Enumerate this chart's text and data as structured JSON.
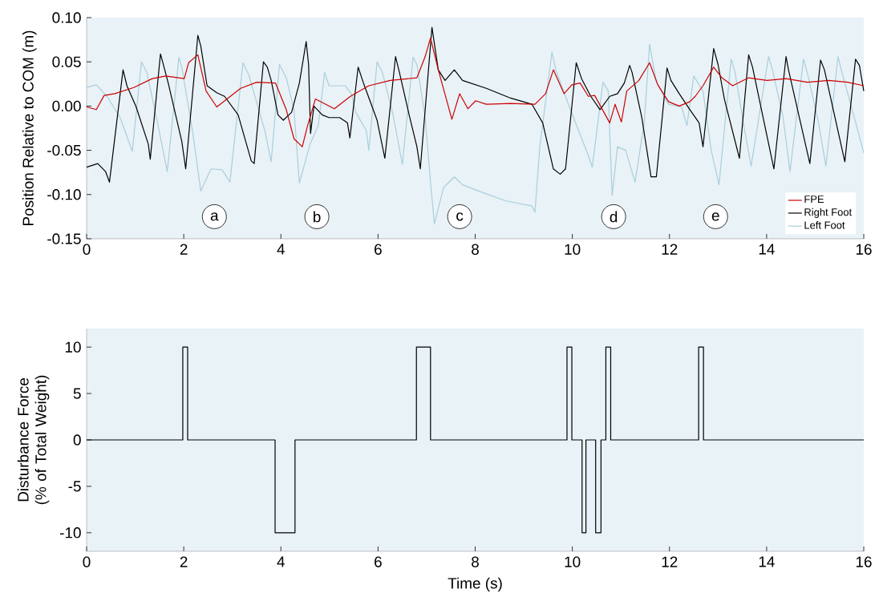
{
  "chart_data": [
    {
      "type": "line",
      "ylabel": "Position Relative to COM (m)",
      "xlim": [
        0,
        16
      ],
      "ylim": [
        -0.15,
        0.1
      ],
      "xticks": [
        0,
        2,
        4,
        6,
        8,
        10,
        12,
        14,
        16
      ],
      "yticks": [
        {
          "value": -0.15,
          "label": "-0.15"
        },
        {
          "value": -0.1,
          "label": "-0.10"
        },
        {
          "value": -0.05,
          "label": "-0.05"
        },
        {
          "value": 0,
          "label": "0.00"
        },
        {
          "value": 0.05,
          "label": "0.05"
        },
        {
          "value": 0.1,
          "label": "0.10"
        }
      ],
      "legend": "bottom right",
      "series": [
        {
          "name": "FPE",
          "color": "#cc0000",
          "x": [
            0,
            0.2,
            0.36,
            0.58,
            0.97,
            1.35,
            1.63,
            2.01,
            2.1,
            2.29,
            2.46,
            2.68,
            2.89,
            3.17,
            3.5,
            3.89,
            4.11,
            4.27,
            4.44,
            4.55,
            4.71,
            5.1,
            5.43,
            5.81,
            6.25,
            6.8,
            6.97,
            7.08,
            7.24,
            7.52,
            7.68,
            7.85,
            8.01,
            8.23,
            8.73,
            9.23,
            9.45,
            9.61,
            9.83,
            9.99,
            10.16,
            10.33,
            10.46,
            10.77,
            10.88,
            11.01,
            11.12,
            11.37,
            11.59,
            11.76,
            11.98,
            12.2,
            12.42,
            12.53,
            12.69,
            12.91,
            13.08,
            13.3,
            13.63,
            14.01,
            14.4,
            14.84,
            15.28,
            15.67,
            16
          ],
          "values": [
            -0.001,
            -0.004,
            0.012,
            0.014,
            0.021,
            0.031,
            0.034,
            0.031,
            0.049,
            0.058,
            0.017,
            -0.001,
            0.008,
            0.02,
            0.027,
            0.026,
            -0.004,
            -0.037,
            -0.046,
            -0.022,
            0.008,
            -0.003,
            0.011,
            0.023,
            0.029,
            0.032,
            0.056,
            0.077,
            0.041,
            -0.015,
            0.014,
            -0.003,
            0.006,
            0.002,
            0.003,
            0.002,
            0.014,
            0.041,
            0.014,
            0.024,
            0.026,
            0.011,
            0.012,
            -0.019,
            0.002,
            -0.018,
            0.017,
            0.029,
            0.049,
            0.024,
            0.005,
            0.0,
            0.005,
            0.011,
            0.023,
            0.044,
            0.032,
            0.023,
            0.032,
            0.029,
            0.031,
            0.027,
            0.029,
            0.027,
            0.023
          ]
        },
        {
          "name": "Right Foot",
          "color": "#000000",
          "x": [
            0,
            0.23,
            0.39,
            0.47,
            0.75,
            0.83,
            1.02,
            1.27,
            1.31,
            1.52,
            1.57,
            1.68,
            1.96,
            2.04,
            2.29,
            2.35,
            2.48,
            2.68,
            2.84,
            3.12,
            3.39,
            3.45,
            3.64,
            3.72,
            3.8,
            3.94,
            4.05,
            4.22,
            4.38,
            4.52,
            4.57,
            4.61,
            4.68,
            4.85,
            4.99,
            5.21,
            5.37,
            5.42,
            5.59,
            5.7,
            5.98,
            6.14,
            6.36,
            6.44,
            6.64,
            6.8,
            6.87,
            7.11,
            7.24,
            7.38,
            7.57,
            7.74,
            8.23,
            8.73,
            9.17,
            9.39,
            9.61,
            9.75,
            9.86,
            10.08,
            10.19,
            10.38,
            10.57,
            10.77,
            10.93,
            11.07,
            11.18,
            11.23,
            11.43,
            11.62,
            11.73,
            11.95,
            12.03,
            12.2,
            12.42,
            12.61,
            12.69,
            12.91,
            13.0,
            13.13,
            13.44,
            13.63,
            13.71,
            14.15,
            14.4,
            14.45,
            14.89,
            15.11,
            15.19,
            15.61,
            15.83,
            15.91,
            16
          ],
          "values": [
            -0.069,
            -0.065,
            -0.074,
            -0.086,
            0.041,
            0.023,
            -0.001,
            -0.043,
            -0.06,
            0.059,
            0.049,
            0.026,
            -0.04,
            -0.071,
            0.08,
            0.068,
            0.023,
            0.015,
            0.011,
            -0.01,
            -0.062,
            -0.065,
            0.05,
            0.044,
            0.029,
            -0.01,
            -0.016,
            -0.007,
            0.026,
            0.073,
            0.047,
            -0.031,
            0.0,
            -0.01,
            -0.013,
            -0.013,
            -0.019,
            -0.036,
            0.044,
            0.026,
            -0.016,
            -0.059,
            0.056,
            0.038,
            -0.01,
            -0.046,
            -0.071,
            0.089,
            0.041,
            0.029,
            0.041,
            0.029,
            0.02,
            0.009,
            0.002,
            -0.019,
            -0.071,
            -0.077,
            -0.071,
            0.049,
            0.031,
            0.011,
            -0.004,
            0.011,
            0.014,
            0.026,
            0.046,
            0.038,
            -0.013,
            -0.08,
            -0.08,
            0.043,
            0.029,
            0.014,
            -0.004,
            -0.019,
            -0.046,
            0.065,
            0.047,
            0.008,
            -0.059,
            0.058,
            0.044,
            -0.071,
            0.056,
            0.041,
            -0.065,
            0.052,
            0.041,
            -0.063,
            0.053,
            0.046,
            0.017
          ]
        },
        {
          "name": "Left Foot",
          "color": "#a8cfdc",
          "x": [
            0,
            0.2,
            0.42,
            0.69,
            0.94,
            1.13,
            1.24,
            1.46,
            1.66,
            1.9,
            1.96,
            2.18,
            2.35,
            2.56,
            2.79,
            2.95,
            3.22,
            3.34,
            3.67,
            3.8,
            3.97,
            4.11,
            4.27,
            4.38,
            4.6,
            4.77,
            4.9,
            4.99,
            5.32,
            5.45,
            5.54,
            5.76,
            5.81,
            5.98,
            6.09,
            6.31,
            6.5,
            6.72,
            6.8,
            6.97,
            7.08,
            7.16,
            7.35,
            7.57,
            7.74,
            8.07,
            8.62,
            9.17,
            9.23,
            9.33,
            9.58,
            9.66,
            9.94,
            10.33,
            10.41,
            10.63,
            10.74,
            10.77,
            10.82,
            10.93,
            11.1,
            11.29,
            11.48,
            11.59,
            11.73,
            11.98,
            12.25,
            12.36,
            12.5,
            12.69,
            12.86,
            13.02,
            13.27,
            13.35,
            13.52,
            13.68,
            14.04,
            14.12,
            14.34,
            14.48,
            14.76,
            14.84,
            15.06,
            15.22,
            15.47,
            15.55,
            15.88,
            16
          ],
          "values": [
            0.021,
            0.024,
            0.011,
            -0.013,
            -0.051,
            0.05,
            0.038,
            -0.019,
            -0.074,
            0.055,
            0.044,
            -0.028,
            -0.096,
            -0.071,
            -0.072,
            -0.086,
            0.049,
            0.035,
            -0.028,
            -0.063,
            0.047,
            0.032,
            -0.004,
            -0.087,
            -0.043,
            -0.022,
            0.038,
            0.023,
            0.023,
            0.014,
            -0.007,
            -0.028,
            -0.05,
            0.05,
            0.038,
            -0.01,
            -0.066,
            0.055,
            0.047,
            -0.013,
            -0.086,
            -0.133,
            -0.092,
            -0.08,
            -0.089,
            -0.096,
            -0.107,
            -0.113,
            -0.12,
            -0.046,
            0.061,
            0.041,
            -0.001,
            -0.056,
            -0.069,
            0.027,
            0.017,
            -0.031,
            -0.101,
            -0.046,
            -0.05,
            -0.086,
            -0.019,
            0.07,
            0.027,
            0.002,
            -0.001,
            -0.022,
            0.034,
            0.017,
            -0.05,
            -0.089,
            0.053,
            0.038,
            -0.019,
            -0.068,
            0.056,
            0.041,
            -0.013,
            -0.074,
            0.053,
            0.037,
            -0.016,
            -0.068,
            0.056,
            0.038,
            -0.028,
            -0.053
          ]
        }
      ],
      "annotations": [
        {
          "text": "a",
          "x": 2.63,
          "y": -0.125
        },
        {
          "text": "b",
          "x": 4.74,
          "y": -0.125
        },
        {
          "text": "c",
          "x": 7.68,
          "y": -0.125
        },
        {
          "text": "d",
          "x": 10.85,
          "y": -0.125
        },
        {
          "text": "e",
          "x": 12.95,
          "y": -0.125
        }
      ]
    },
    {
      "type": "step",
      "xlabel": "Time (s)",
      "ylabel": "Disturbance Force (% of Total Weight)",
      "xlim": [
        0,
        16
      ],
      "ylim": [
        -12,
        12
      ],
      "xticks": [
        0,
        2,
        4,
        6,
        8,
        10,
        12,
        14,
        16
      ],
      "yticks": [
        -10,
        -5,
        0,
        5,
        10
      ],
      "series": [
        {
          "color": "#000000",
          "x": [
            0,
            1.98,
            2.08,
            3.88,
            4.29,
            6.79,
            7.08,
            9.89,
            9.99,
            10.2,
            10.28,
            10.48,
            10.59,
            10.69,
            10.79,
            12.6,
            12.7,
            16
          ],
          "values": [
            0,
            10,
            0,
            -10,
            0,
            10,
            0,
            10,
            0,
            -10,
            0,
            -10,
            0,
            10,
            0,
            10,
            0,
            0
          ]
        }
      ]
    }
  ]
}
